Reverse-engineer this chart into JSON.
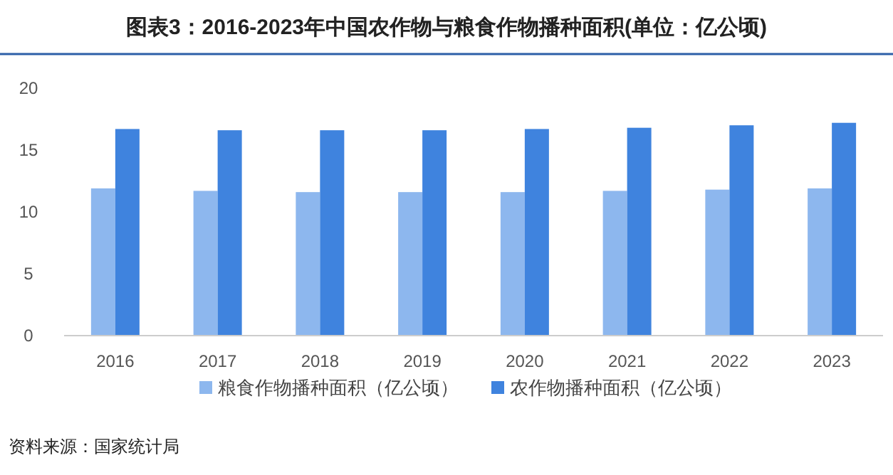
{
  "chart_data": {
    "type": "bar",
    "title": "图表3：2016-2023年中国农作物与粮食作物播种面积(单位：亿公顷)",
    "categories": [
      "2016",
      "2017",
      "2018",
      "2019",
      "2020",
      "2021",
      "2022",
      "2023"
    ],
    "series": [
      {
        "name": "粮食作物播种面积（亿公顷）",
        "color": "#8db7ee",
        "values": [
          11.9,
          11.7,
          11.6,
          11.6,
          11.6,
          11.7,
          11.8,
          11.9
        ]
      },
      {
        "name": "农作物播种面积（亿公顷）",
        "color": "#3f83de",
        "values": [
          16.7,
          16.6,
          16.6,
          16.6,
          16.7,
          16.8,
          17.0,
          17.2
        ]
      }
    ],
    "ylim": [
      0,
      20
    ],
    "yticks": [
      0,
      5,
      10,
      15,
      20
    ],
    "grid": false,
    "legend": "bottom",
    "annotations": [
      "资料来源：国家统计局"
    ]
  }
}
